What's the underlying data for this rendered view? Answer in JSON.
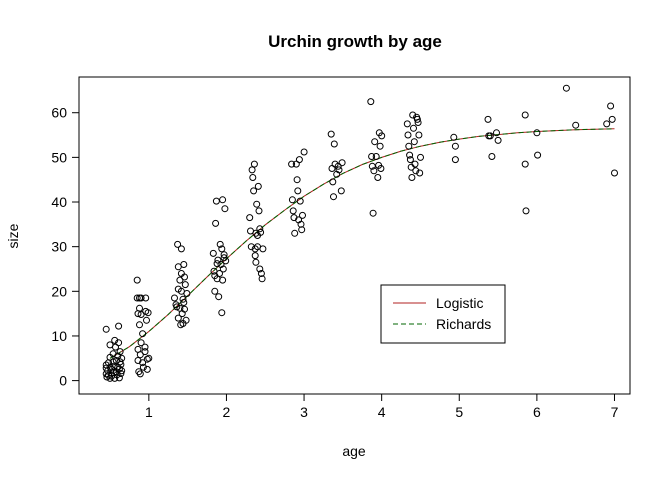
{
  "chart_data": {
    "type": "scatter",
    "title": "Urchin growth by age",
    "xlabel": "age",
    "ylabel": "size",
    "xlim": [
      0.1,
      7.2
    ],
    "ylim": [
      -3,
      68
    ],
    "xticks": [
      1,
      2,
      3,
      4,
      5,
      6,
      7
    ],
    "yticks": [
      0,
      10,
      20,
      30,
      40,
      50,
      60
    ],
    "grid": false,
    "legend_position": "bottom-right",
    "points": [
      [
        0.45,
        11.5
      ],
      [
        0.45,
        3.5
      ],
      [
        0.45,
        2.8
      ],
      [
        0.45,
        1.5
      ],
      [
        0.46,
        0.8
      ],
      [
        0.47,
        2.2
      ],
      [
        0.48,
        4.0
      ],
      [
        0.48,
        1.2
      ],
      [
        0.5,
        8.0
      ],
      [
        0.5,
        5.2
      ],
      [
        0.5,
        3.0
      ],
      [
        0.5,
        0.5
      ],
      [
        0.52,
        2.5
      ],
      [
        0.52,
        1.0
      ],
      [
        0.54,
        6.0
      ],
      [
        0.54,
        4.2
      ],
      [
        0.55,
        3.2
      ],
      [
        0.55,
        1.8
      ],
      [
        0.56,
        9.0
      ],
      [
        0.56,
        0.5
      ],
      [
        0.57,
        7.5
      ],
      [
        0.58,
        2.0
      ],
      [
        0.58,
        4.5
      ],
      [
        0.59,
        1.3
      ],
      [
        0.6,
        3.0
      ],
      [
        0.6,
        5.5
      ],
      [
        0.61,
        8.5
      ],
      [
        0.61,
        12.2
      ],
      [
        0.62,
        2.6
      ],
      [
        0.62,
        0.6
      ],
      [
        0.63,
        4.2
      ],
      [
        0.63,
        6.5
      ],
      [
        0.64,
        1.6
      ],
      [
        0.64,
        3.6
      ],
      [
        0.65,
        5.0
      ],
      [
        0.65,
        2.2
      ],
      [
        0.85,
        22.5
      ],
      [
        0.85,
        18.5
      ],
      [
        0.86,
        15.0
      ],
      [
        0.86,
        7.0
      ],
      [
        0.86,
        4.5
      ],
      [
        0.87,
        2.0
      ],
      [
        0.88,
        18.5
      ],
      [
        0.88,
        16.2
      ],
      [
        0.88,
        12.5
      ],
      [
        0.89,
        5.8
      ],
      [
        0.89,
        1.5
      ],
      [
        0.9,
        18.5
      ],
      [
        0.9,
        14.8
      ],
      [
        0.9,
        8.5
      ],
      [
        0.92,
        10.5
      ],
      [
        0.92,
        4.0
      ],
      [
        0.93,
        3.0
      ],
      [
        0.95,
        6.5
      ],
      [
        0.95,
        7.5
      ],
      [
        0.96,
        18.5
      ],
      [
        0.96,
        15.5
      ],
      [
        0.97,
        13.5
      ],
      [
        0.98,
        2.5
      ],
      [
        0.98,
        4.8
      ],
      [
        0.99,
        15.2
      ],
      [
        1.0,
        5.0
      ],
      [
        1.33,
        18.5
      ],
      [
        1.35,
        17.0
      ],
      [
        1.36,
        16.5
      ],
      [
        1.37,
        30.5
      ],
      [
        1.38,
        25.5
      ],
      [
        1.38,
        20.5
      ],
      [
        1.38,
        14.0
      ],
      [
        1.4,
        16.2
      ],
      [
        1.4,
        22.5
      ],
      [
        1.41,
        12.5
      ],
      [
        1.42,
        29.5
      ],
      [
        1.42,
        24.0
      ],
      [
        1.42,
        20.0
      ],
      [
        1.43,
        15.0
      ],
      [
        1.44,
        18.2
      ],
      [
        1.44,
        12.8
      ],
      [
        1.45,
        26.0
      ],
      [
        1.45,
        17.5
      ],
      [
        1.46,
        23.2
      ],
      [
        1.46,
        16.0
      ],
      [
        1.47,
        21.5
      ],
      [
        1.48,
        13.5
      ],
      [
        1.49,
        19.5
      ],
      [
        1.83,
        28.5
      ],
      [
        1.84,
        24.5
      ],
      [
        1.85,
        23.5
      ],
      [
        1.85,
        20.0
      ],
      [
        1.86,
        35.2
      ],
      [
        1.87,
        40.2
      ],
      [
        1.88,
        26.2
      ],
      [
        1.88,
        22.8
      ],
      [
        1.89,
        27.0
      ],
      [
        1.9,
        18.8
      ],
      [
        1.91,
        24.0
      ],
      [
        1.92,
        30.5
      ],
      [
        1.93,
        26.0
      ],
      [
        1.94,
        29.5
      ],
      [
        1.94,
        15.2
      ],
      [
        1.95,
        40.5
      ],
      [
        1.95,
        22.5
      ],
      [
        1.96,
        25.0
      ],
      [
        1.97,
        28.2
      ],
      [
        1.97,
        27.5
      ],
      [
        1.98,
        38.5
      ],
      [
        1.99,
        26.8
      ],
      [
        2.3,
        36.5
      ],
      [
        2.31,
        33.5
      ],
      [
        2.32,
        30.0
      ],
      [
        2.33,
        47.2
      ],
      [
        2.34,
        45.5
      ],
      [
        2.35,
        42.5
      ],
      [
        2.36,
        48.5
      ],
      [
        2.37,
        29.5
      ],
      [
        2.37,
        28.0
      ],
      [
        2.38,
        33.0
      ],
      [
        2.38,
        26.5
      ],
      [
        2.39,
        39.5
      ],
      [
        2.4,
        32.5
      ],
      [
        2.4,
        30.0
      ],
      [
        2.41,
        43.5
      ],
      [
        2.42,
        38.0
      ],
      [
        2.43,
        34.0
      ],
      [
        2.43,
        25.0
      ],
      [
        2.44,
        33.2
      ],
      [
        2.45,
        24.0
      ],
      [
        2.46,
        22.8
      ],
      [
        2.47,
        29.5
      ],
      [
        2.84,
        48.5
      ],
      [
        2.85,
        40.5
      ],
      [
        2.86,
        38.0
      ],
      [
        2.87,
        36.5
      ],
      [
        2.88,
        33.0
      ],
      [
        2.9,
        48.5
      ],
      [
        2.91,
        45.0
      ],
      [
        2.92,
        42.5
      ],
      [
        2.93,
        36.0
      ],
      [
        2.94,
        49.5
      ],
      [
        2.95,
        40.2
      ],
      [
        2.96,
        35.0
      ],
      [
        2.97,
        33.8
      ],
      [
        2.98,
        37.0
      ],
      [
        3.0,
        51.2
      ],
      [
        3.35,
        55.2
      ],
      [
        3.36,
        47.5
      ],
      [
        3.37,
        44.5
      ],
      [
        3.38,
        41.2
      ],
      [
        3.39,
        53.0
      ],
      [
        3.4,
        48.5
      ],
      [
        3.42,
        46.2
      ],
      [
        3.44,
        48.0
      ],
      [
        3.45,
        47.2
      ],
      [
        3.48,
        42.5
      ],
      [
        3.49,
        48.8
      ],
      [
        3.86,
        62.5
      ],
      [
        3.87,
        50.2
      ],
      [
        3.88,
        48.0
      ],
      [
        3.89,
        37.5
      ],
      [
        3.9,
        47.0
      ],
      [
        3.91,
        53.5
      ],
      [
        3.93,
        50.2
      ],
      [
        3.95,
        45.5
      ],
      [
        3.96,
        48.2
      ],
      [
        3.97,
        55.5
      ],
      [
        3.98,
        52.5
      ],
      [
        3.99,
        47.5
      ],
      [
        4.0,
        54.8
      ],
      [
        4.33,
        57.5
      ],
      [
        4.34,
        55.0
      ],
      [
        4.35,
        52.5
      ],
      [
        4.36,
        50.5
      ],
      [
        4.37,
        49.5
      ],
      [
        4.38,
        47.8
      ],
      [
        4.39,
        45.5
      ],
      [
        4.4,
        59.5
      ],
      [
        4.41,
        56.5
      ],
      [
        4.42,
        53.5
      ],
      [
        4.43,
        48.5
      ],
      [
        4.44,
        47.0
      ],
      [
        4.45,
        59.0
      ],
      [
        4.46,
        58.5
      ],
      [
        4.47,
        57.8
      ],
      [
        4.48,
        55.0
      ],
      [
        4.49,
        46.5
      ],
      [
        4.5,
        50.0
      ],
      [
        4.93,
        54.5
      ],
      [
        4.95,
        52.5
      ],
      [
        4.95,
        49.5
      ],
      [
        5.37,
        58.5
      ],
      [
        5.38,
        54.8
      ],
      [
        5.4,
        54.8
      ],
      [
        5.42,
        50.2
      ],
      [
        5.48,
        55.5
      ],
      [
        5.5,
        53.8
      ],
      [
        5.85,
        59.5
      ],
      [
        5.85,
        48.5
      ],
      [
        5.86,
        38.0
      ],
      [
        6.0,
        55.5
      ],
      [
        6.01,
        50.5
      ],
      [
        6.38,
        65.5
      ],
      [
        6.5,
        57.2
      ],
      [
        6.9,
        57.5
      ],
      [
        6.95,
        61.5
      ],
      [
        6.97,
        58.5
      ],
      [
        7.0,
        46.5
      ]
    ],
    "series": [
      {
        "name": "Logistic",
        "color": "#b22222",
        "dash": "solid",
        "x": [
          0.5,
          0.75,
          1.0,
          1.25,
          1.5,
          1.75,
          2.0,
          2.25,
          2.5,
          2.75,
          3.0,
          3.25,
          3.5,
          3.75,
          4.0,
          4.25,
          4.5,
          4.75,
          5.0,
          5.25,
          5.5,
          5.75,
          6.0,
          6.25,
          6.5,
          6.75,
          7.0
        ],
        "values": [
          5.0,
          7.6,
          11.0,
          14.8,
          19.0,
          23.2,
          27.3,
          31.2,
          34.9,
          38.2,
          41.3,
          44.0,
          46.4,
          48.4,
          50.0,
          51.4,
          52.5,
          53.4,
          54.1,
          54.7,
          55.1,
          55.5,
          55.8,
          56.0,
          56.2,
          56.3,
          56.4
        ]
      },
      {
        "name": "Richards",
        "color": "#006400",
        "dash": "dashed",
        "x": [
          0.5,
          0.75,
          1.0,
          1.25,
          1.5,
          1.75,
          2.0,
          2.25,
          2.5,
          2.75,
          3.0,
          3.25,
          3.5,
          3.75,
          4.0,
          4.25,
          4.5,
          4.75,
          5.0,
          5.25,
          5.5,
          5.75,
          6.0,
          6.25,
          6.5,
          6.75,
          7.0
        ],
        "values": [
          5.0,
          7.6,
          11.0,
          14.8,
          19.0,
          23.2,
          27.3,
          31.2,
          34.9,
          38.2,
          41.3,
          44.0,
          46.4,
          48.4,
          50.0,
          51.4,
          52.5,
          53.4,
          54.1,
          54.7,
          55.1,
          55.5,
          55.8,
          56.0,
          56.2,
          56.3,
          56.4
        ]
      }
    ]
  }
}
